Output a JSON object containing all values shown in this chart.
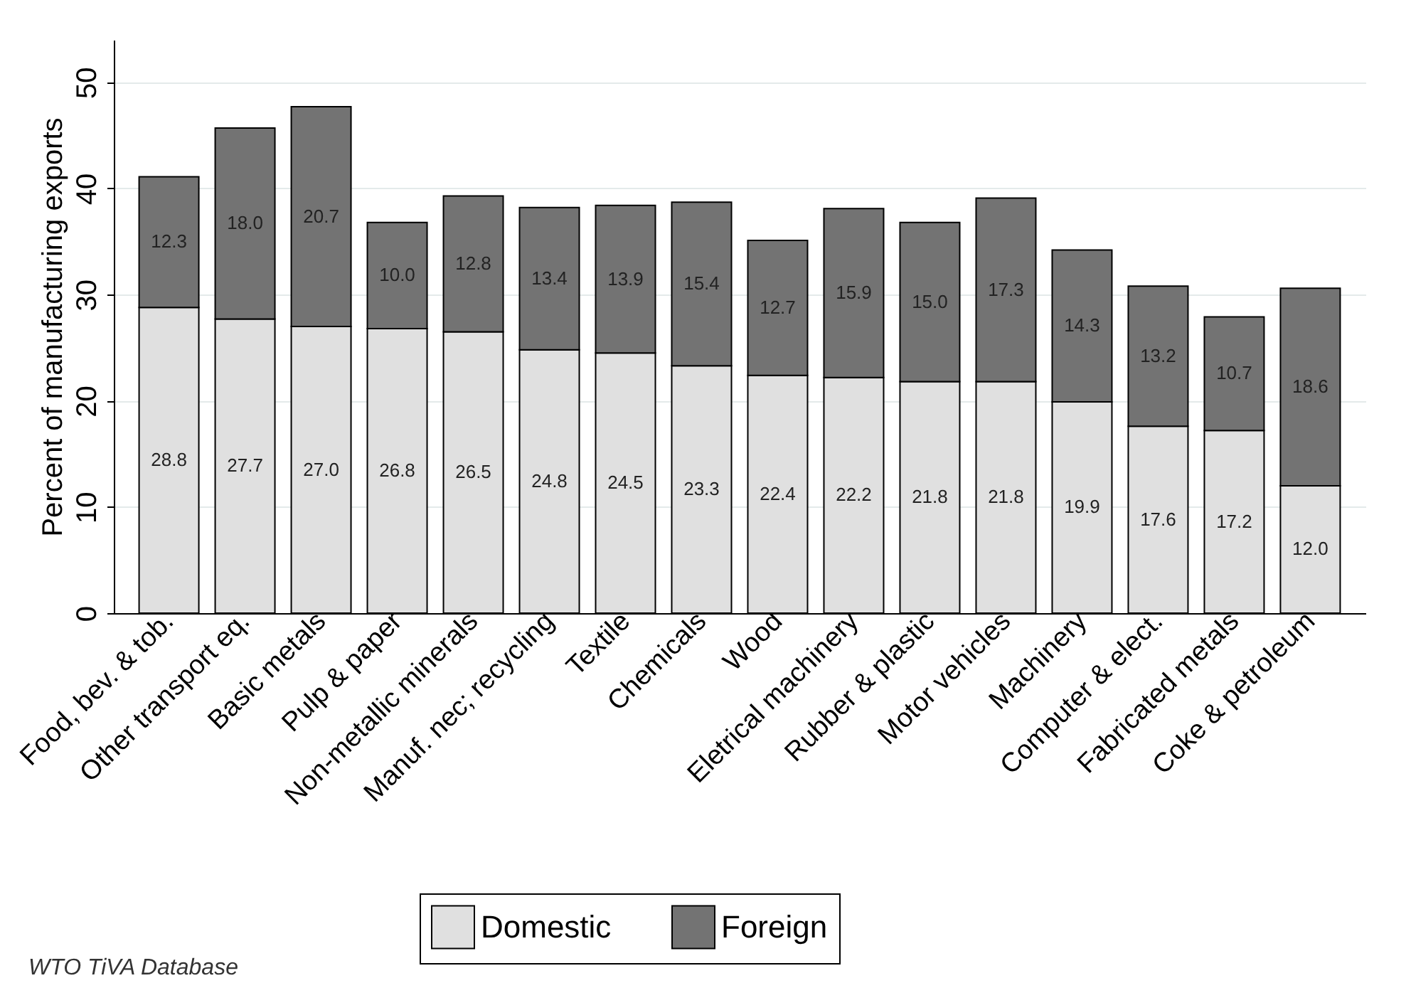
{
  "chart_data": {
    "type": "bar",
    "stacked": true,
    "ylabel": "Percent of manufacturing exports",
    "categories": [
      "Food, bev. & tob.",
      "Other transport eq.",
      "Basic metals",
      "Pulp & paper",
      "Non-metallic minerals",
      "Manuf. nec; recycling",
      "Textile",
      "Chemicals",
      "Wood",
      "Eletrical machinery",
      "Rubber & plastic",
      "Motor vehicles",
      "Machinery",
      "Computer & elect.",
      "Fabricated metals",
      "Coke & petroleum"
    ],
    "series": [
      {
        "name": "Domestic",
        "color": "#e0e0e0",
        "values": [
          28.8,
          27.7,
          27.0,
          26.8,
          26.5,
          24.8,
          24.5,
          23.3,
          22.4,
          22.2,
          21.8,
          21.8,
          19.9,
          17.6,
          17.2,
          12.0
        ],
        "value_labels": [
          "28.8",
          "27.7",
          "27.0",
          "26.8",
          "26.5",
          "24.8",
          "24.5",
          "23.3",
          "22.4",
          "22.2",
          "21.8",
          "21.8",
          "19.9",
          "17.6",
          "17.2",
          "12.0"
        ]
      },
      {
        "name": "Foreign",
        "color": "#737373",
        "values": [
          12.3,
          18.0,
          20.7,
          10.0,
          12.8,
          13.4,
          13.9,
          15.4,
          12.7,
          15.9,
          15.0,
          17.3,
          14.3,
          13.2,
          10.7,
          18.6
        ],
        "value_labels": [
          "12.3",
          "18.0",
          "20.7",
          "10.0",
          "12.8",
          "13.4",
          "13.9",
          "15.4",
          "12.7",
          "15.9",
          "15.0",
          "17.3",
          "14.3",
          "13.2",
          "10.7",
          "18.6"
        ]
      }
    ],
    "ylim": [
      0,
      54
    ],
    "yticks": [
      0,
      10,
      20,
      30,
      40,
      50
    ],
    "grid": "y",
    "legend": "bottom",
    "annotations": [
      "WTO TiVA Database"
    ]
  }
}
